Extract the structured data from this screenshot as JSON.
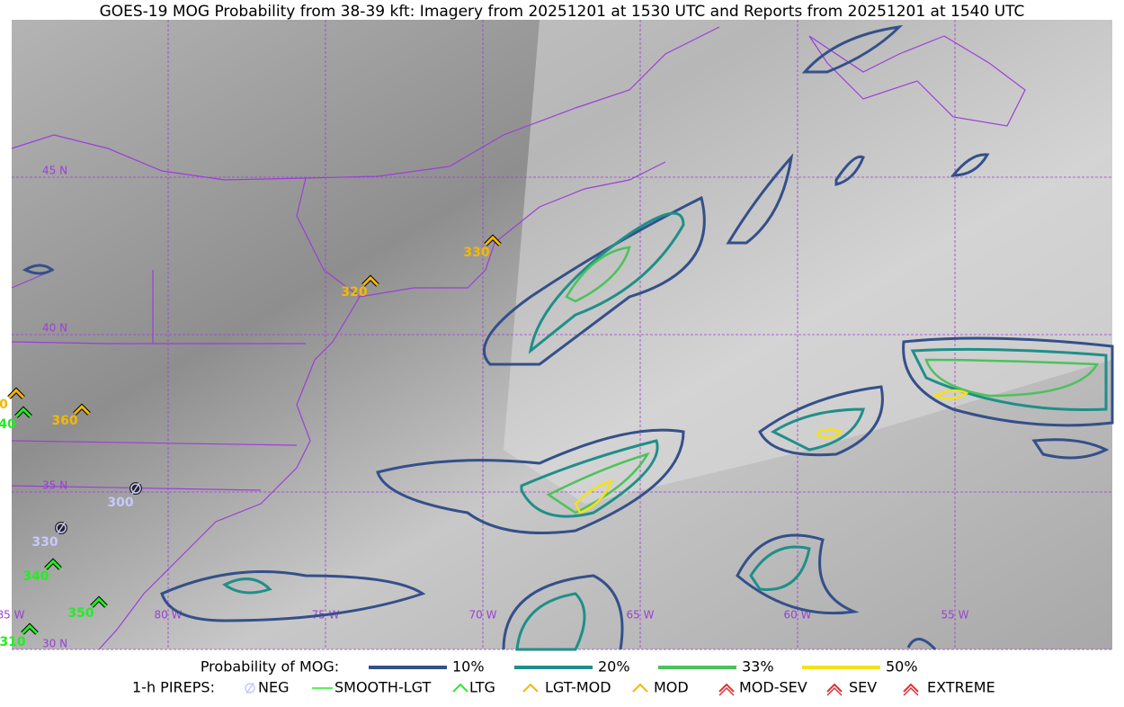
{
  "title": "GOES-19 MOG Probability from 38-39 kft: Imagery from 20251201 at 1530 UTC and Reports from 20251201 at 1540 UTC",
  "latitude_labels": [
    "45 N",
    "40 N",
    "35 N",
    "30 N"
  ],
  "longitude_labels": [
    "85 W",
    "80 W",
    "75 W",
    "70 W",
    "65 W",
    "60 W",
    "55 W"
  ],
  "pirep_labels": [
    "330",
    "320",
    "360",
    "0",
    "40",
    "300",
    "330",
    "340",
    "350",
    "310"
  ],
  "legend": {
    "probability_title": "Probability of MOG:",
    "probability_levels": [
      "10%",
      "20%",
      "33%",
      "50%"
    ],
    "pirep_title": "1-h PIREPS:",
    "pirep_types": [
      "NEG",
      "SMOOTH-LGT",
      "LTG",
      "LGT-MOD",
      "MOD",
      "MOD-SEV",
      "SEV",
      "EXTREME"
    ]
  }
}
